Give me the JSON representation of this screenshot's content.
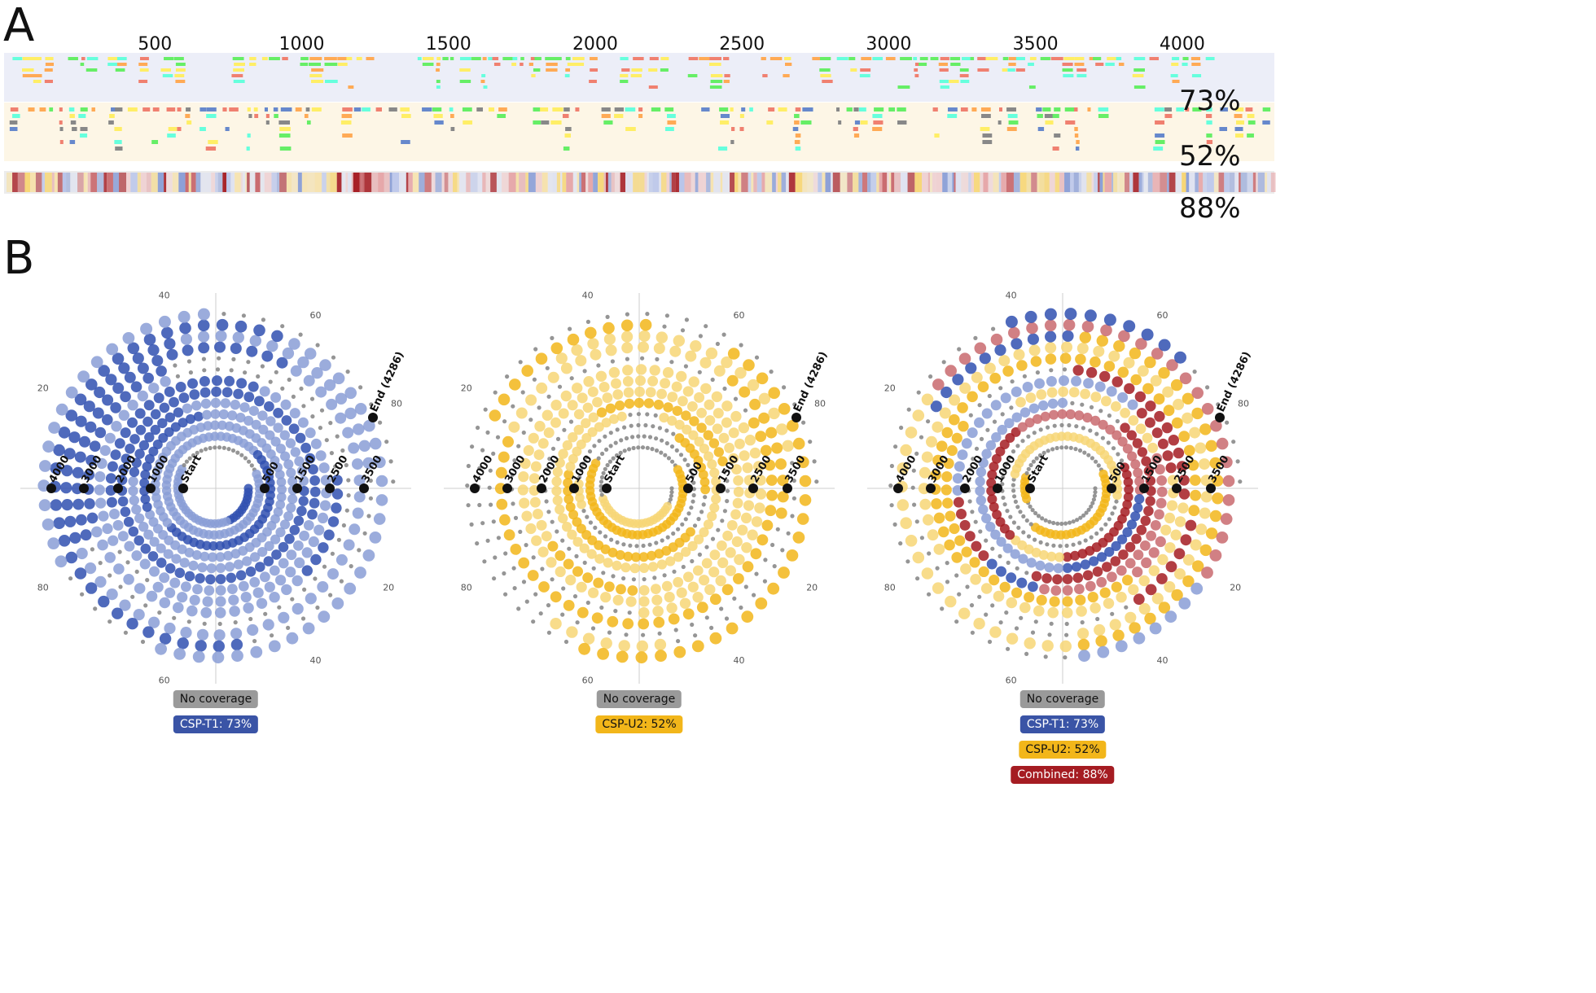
{
  "panel_a": {
    "letter": "A",
    "axis_ticks": [
      {
        "value": 500,
        "label": "500"
      },
      {
        "value": 1000,
        "label": "1000"
      },
      {
        "value": 1500,
        "label": "1500"
      },
      {
        "value": 2000,
        "label": "2000"
      },
      {
        "value": 2500,
        "label": "2500"
      },
      {
        "value": 3000,
        "label": "3000"
      },
      {
        "value": 3500,
        "label": "3500"
      },
      {
        "value": 4000,
        "label": "4000"
      }
    ],
    "coverage": {
      "csp_t1": "73%",
      "csp_u2": "52%",
      "combined": "88%"
    }
  },
  "panel_b": {
    "letter": "B",
    "sequence_length": 4286,
    "spiral_labels": [
      "Start",
      "500",
      "1000",
      "1500",
      "2000",
      "2500",
      "3000",
      "3500",
      "4000",
      "End (4286)"
    ],
    "radial_ticks": [
      "20",
      "40",
      "60",
      "80"
    ],
    "plots": [
      {
        "id": "csp-t1",
        "legend": [
          {
            "label": "No coverage",
            "color": "#9a9a9a",
            "text_color": "#111111"
          },
          {
            "label": "CSP-T1: 73%",
            "color": "#3a54a6",
            "text_color": "#ffffff"
          }
        ]
      },
      {
        "id": "csp-u2",
        "legend": [
          {
            "label": "No coverage",
            "color": "#9a9a9a",
            "text_color": "#111111"
          },
          {
            "label": "CSP-U2: 52%",
            "color": "#f2b61a",
            "text_color": "#111111"
          }
        ]
      },
      {
        "id": "combined",
        "legend": [
          {
            "label": "No coverage",
            "color": "#9a9a9a",
            "text_color": "#111111"
          },
          {
            "label": "CSP-T1: 73%",
            "color": "#3a54a6",
            "text_color": "#ffffff"
          },
          {
            "label": "CSP-U2: 52%",
            "color": "#f2b61a",
            "text_color": "#111111"
          },
          {
            "label": "Combined: 88%",
            "color": "#a51c22",
            "text_color": "#ffffff"
          }
        ]
      }
    ]
  },
  "colors": {
    "t1_band_bg": "#eceef8",
    "u2_band_bg": "#fdf6e6",
    "heat_bg": "#ececec",
    "peptide_palette": [
      "#f08070",
      "#ffee66",
      "#66ee66",
      "#66ffdd",
      "#ffaa55",
      "#6688cc",
      "#888888"
    ],
    "no_coverage": "#8a8a8a",
    "t1_strong": "#3050b0",
    "t1_light": "#8a9ed6",
    "u2_strong": "#f2b61a",
    "u2_light": "#f7d675",
    "combined_strong": "#a51c22",
    "combined_light": "#c96a6e"
  }
}
